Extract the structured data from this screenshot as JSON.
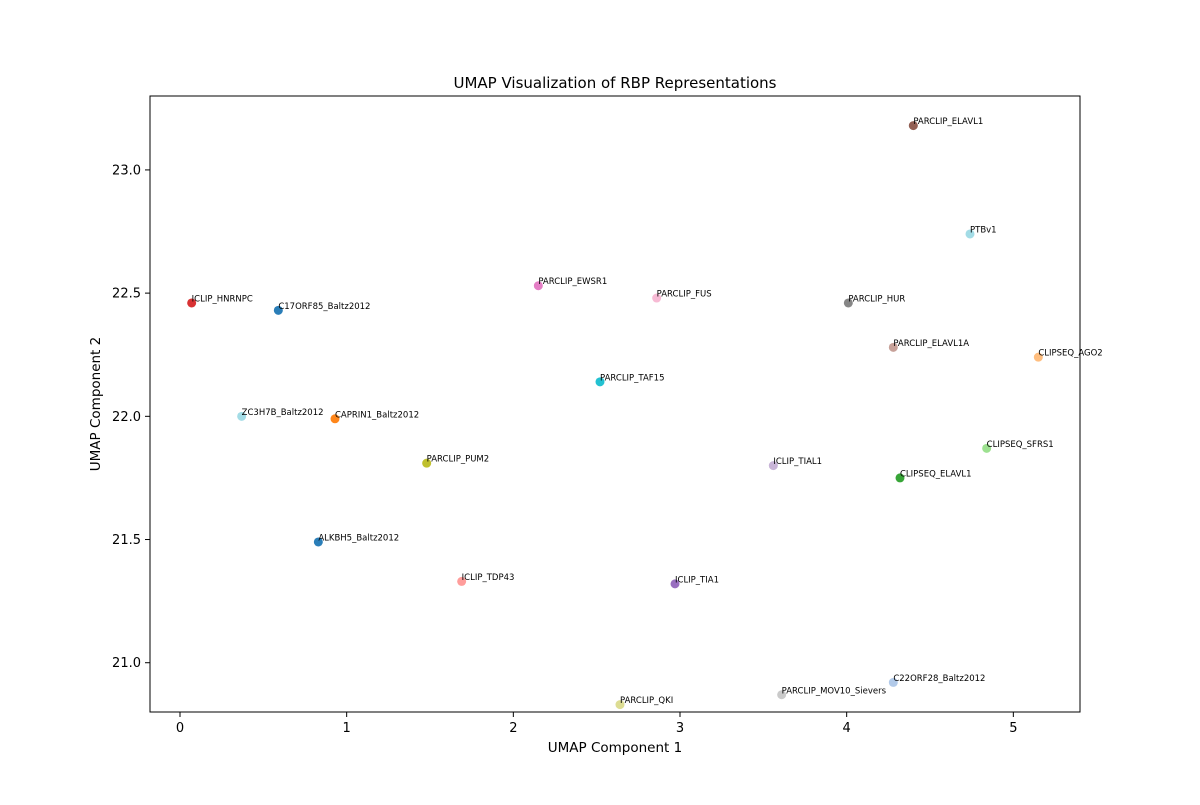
{
  "chart_data": {
    "type": "scatter",
    "title": "UMAP Visualization of RBP Representations",
    "xlabel": "UMAP Component 1",
    "ylabel": "UMAP Component 2",
    "xlim": [
      -0.18,
      5.4
    ],
    "ylim": [
      20.8,
      23.3
    ],
    "xticks": [
      0,
      1,
      2,
      3,
      4,
      5
    ],
    "xtick_labels": [
      "0",
      "1",
      "2",
      "3",
      "4",
      "5"
    ],
    "yticks": [
      21.0,
      21.5,
      22.0,
      22.5,
      23.0
    ],
    "ytick_labels": [
      "21.0",
      "21.5",
      "22.0",
      "22.5",
      "23.0"
    ],
    "grid": false,
    "legend": "none",
    "points": [
      {
        "label": "PARCLIP_ELAVL1",
        "x": 4.4,
        "y": 23.18,
        "color": "#8c564b"
      },
      {
        "label": "PTBv1",
        "x": 4.74,
        "y": 22.74,
        "color": "#9edae5"
      },
      {
        "label": "PARCLIP_EWSR1",
        "x": 2.15,
        "y": 22.53,
        "color": "#e377c2"
      },
      {
        "label": "PARCLIP_FUS",
        "x": 2.86,
        "y": 22.48,
        "color": "#f7b6d2"
      },
      {
        "label": "PARCLIP_HUR",
        "x": 4.01,
        "y": 22.46,
        "color": "#7f7f7f"
      },
      {
        "label": "ICLIP_HNRNPC",
        "x": 0.07,
        "y": 22.46,
        "color": "#d62728"
      },
      {
        "label": "C17ORF85_Baltz2012",
        "x": 0.59,
        "y": 22.43,
        "color": "#1f77b4"
      },
      {
        "label": "PARCLIP_ELAVL1A",
        "x": 4.28,
        "y": 22.28,
        "color": "#c49c94"
      },
      {
        "label": "CLIPSEQ_AGO2",
        "x": 5.15,
        "y": 22.24,
        "color": "#ffbb78"
      },
      {
        "label": "PARCLIP_TAF15",
        "x": 2.52,
        "y": 22.14,
        "color": "#17becf"
      },
      {
        "label": "ZC3H7B_Baltz2012",
        "x": 0.37,
        "y": 22.0,
        "color": "#9edae5"
      },
      {
        "label": "CAPRIN1_Baltz2012",
        "x": 0.93,
        "y": 21.99,
        "color": "#ff7f0e"
      },
      {
        "label": "CLIPSEQ_SFRS1",
        "x": 4.84,
        "y": 21.87,
        "color": "#98df8a"
      },
      {
        "label": "PARCLIP_PUM2",
        "x": 1.48,
        "y": 21.81,
        "color": "#bcbd22"
      },
      {
        "label": "ICLIP_TIAL1",
        "x": 3.56,
        "y": 21.8,
        "color": "#c5b0d5"
      },
      {
        "label": "CLIPSEQ_ELAVL1",
        "x": 4.32,
        "y": 21.75,
        "color": "#2ca02c"
      },
      {
        "label": "ALKBH5_Baltz2012",
        "x": 0.83,
        "y": 21.49,
        "color": "#1f77b4"
      },
      {
        "label": "ICLIP_TDP43",
        "x": 1.69,
        "y": 21.33,
        "color": "#ff9896"
      },
      {
        "label": "ICLIP_TIA1",
        "x": 2.97,
        "y": 21.32,
        "color": "#9467bd"
      },
      {
        "label": "C22ORF28_Baltz2012",
        "x": 4.28,
        "y": 20.92,
        "color": "#aec7e8"
      },
      {
        "label": "PARCLIP_MOV10_Sievers",
        "x": 3.61,
        "y": 20.87,
        "color": "#c7c7c7"
      },
      {
        "label": "PARCLIP_QKI",
        "x": 2.64,
        "y": 20.83,
        "color": "#dbdb8d"
      }
    ]
  }
}
